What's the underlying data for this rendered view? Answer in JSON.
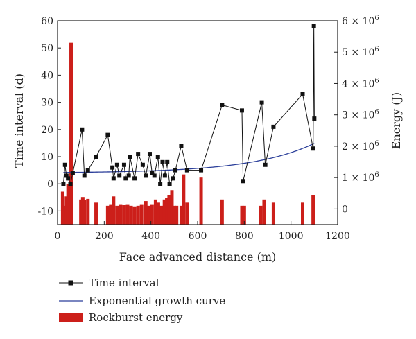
{
  "chart_data": {
    "type": "line",
    "title": "",
    "xlabel": "Face advanced distance (m)",
    "ylabel_left": "Time interval (d)",
    "ylabel_right": "Energy (J)",
    "xlim": [
      0,
      1200
    ],
    "ylim_left": [
      -15,
      60
    ],
    "ylim_right": [
      -500000,
      6000000
    ],
    "x_ticks": [
      0,
      200,
      400,
      600,
      800,
      1000,
      1200
    ],
    "y_ticks_left": [
      -10,
      0,
      10,
      20,
      30,
      40,
      50,
      60
    ],
    "y_ticks_right": [
      {
        "value": 0,
        "label": "0",
        "exp": ""
      },
      {
        "value": 1000000,
        "label": "1 × 10",
        "exp": "6"
      },
      {
        "value": 2000000,
        "label": "2 × 10",
        "exp": "6"
      },
      {
        "value": 3000000,
        "label": "3 × 10",
        "exp": "6"
      },
      {
        "value": 4000000,
        "label": "4 × 10",
        "exp": "6"
      },
      {
        "value": 5000000,
        "label": "5 × 10",
        "exp": "6"
      },
      {
        "value": 6000000,
        "label": "6 × 10",
        "exp": "6"
      }
    ],
    "grid": false,
    "legend_position": "bottom-left",
    "series": [
      {
        "name": "Time interval",
        "kind": "line-square",
        "color": "#111111",
        "points": [
          [
            25,
            0
          ],
          [
            32,
            7
          ],
          [
            38,
            3
          ],
          [
            45,
            2
          ],
          [
            55,
            0
          ],
          [
            65,
            4
          ],
          [
            105,
            20
          ],
          [
            115,
            3
          ],
          [
            130,
            5
          ],
          [
            165,
            10
          ],
          [
            215,
            18
          ],
          [
            235,
            6
          ],
          [
            240,
            2
          ],
          [
            255,
            7
          ],
          [
            265,
            3
          ],
          [
            285,
            7
          ],
          [
            292,
            2
          ],
          [
            305,
            3
          ],
          [
            310,
            10
          ],
          [
            330,
            2
          ],
          [
            345,
            11
          ],
          [
            365,
            7
          ],
          [
            378,
            3
          ],
          [
            395,
            11
          ],
          [
            405,
            4
          ],
          [
            415,
            3
          ],
          [
            430,
            10
          ],
          [
            440,
            0
          ],
          [
            450,
            8
          ],
          [
            460,
            3
          ],
          [
            470,
            8
          ],
          [
            480,
            0
          ],
          [
            495,
            2
          ],
          [
            505,
            5
          ],
          [
            530,
            14
          ],
          [
            555,
            5
          ],
          [
            615,
            5
          ],
          [
            705,
            29
          ],
          [
            790,
            27
          ],
          [
            795,
            1
          ],
          [
            875,
            30
          ],
          [
            890,
            7
          ],
          [
            925,
            21
          ],
          [
            1050,
            33
          ],
          [
            1095,
            13
          ],
          [
            1098,
            58
          ],
          [
            1100,
            24
          ]
        ]
      },
      {
        "name": "Exponential growth curve",
        "kind": "curve",
        "color": "#2b3f9a",
        "model": {
          "y0": 4.0,
          "a": 0.18,
          "b": 0.00373
        },
        "x_range": [
          25,
          1100
        ]
      },
      {
        "name": "Rockburst energy",
        "kind": "bar",
        "color": "#cc1f1a",
        "axis": "right",
        "bars": [
          [
            22,
            550000
          ],
          [
            30,
            100000
          ],
          [
            38,
            400000
          ],
          [
            45,
            800000
          ],
          [
            52,
            300000
          ],
          [
            58,
            5300000
          ],
          [
            100,
            300000
          ],
          [
            108,
            380000
          ],
          [
            115,
            280000
          ],
          [
            130,
            320000
          ],
          [
            165,
            200000
          ],
          [
            215,
            100000
          ],
          [
            228,
            150000
          ],
          [
            240,
            400000
          ],
          [
            255,
            100000
          ],
          [
            270,
            150000
          ],
          [
            285,
            120000
          ],
          [
            300,
            150000
          ],
          [
            315,
            100000
          ],
          [
            330,
            80000
          ],
          [
            345,
            100000
          ],
          [
            360,
            150000
          ],
          [
            378,
            250000
          ],
          [
            392,
            100000
          ],
          [
            405,
            150000
          ],
          [
            420,
            300000
          ],
          [
            432,
            200000
          ],
          [
            445,
            100000
          ],
          [
            458,
            300000
          ],
          [
            468,
            350000
          ],
          [
            478,
            450000
          ],
          [
            490,
            600000
          ],
          [
            500,
            100000
          ],
          [
            510,
            100000
          ],
          [
            530,
            100000
          ],
          [
            540,
            1100000
          ],
          [
            555,
            200000
          ],
          [
            615,
            1000000
          ],
          [
            705,
            300000
          ],
          [
            790,
            100000
          ],
          [
            800,
            100000
          ],
          [
            870,
            100000
          ],
          [
            885,
            300000
          ],
          [
            925,
            200000
          ],
          [
            1050,
            200000
          ],
          [
            1095,
            450000
          ]
        ]
      }
    ]
  },
  "legend": {
    "items": [
      {
        "label": "Time interval"
      },
      {
        "label": "Exponential growth curve"
      },
      {
        "label": "Rockburst energy"
      }
    ]
  }
}
